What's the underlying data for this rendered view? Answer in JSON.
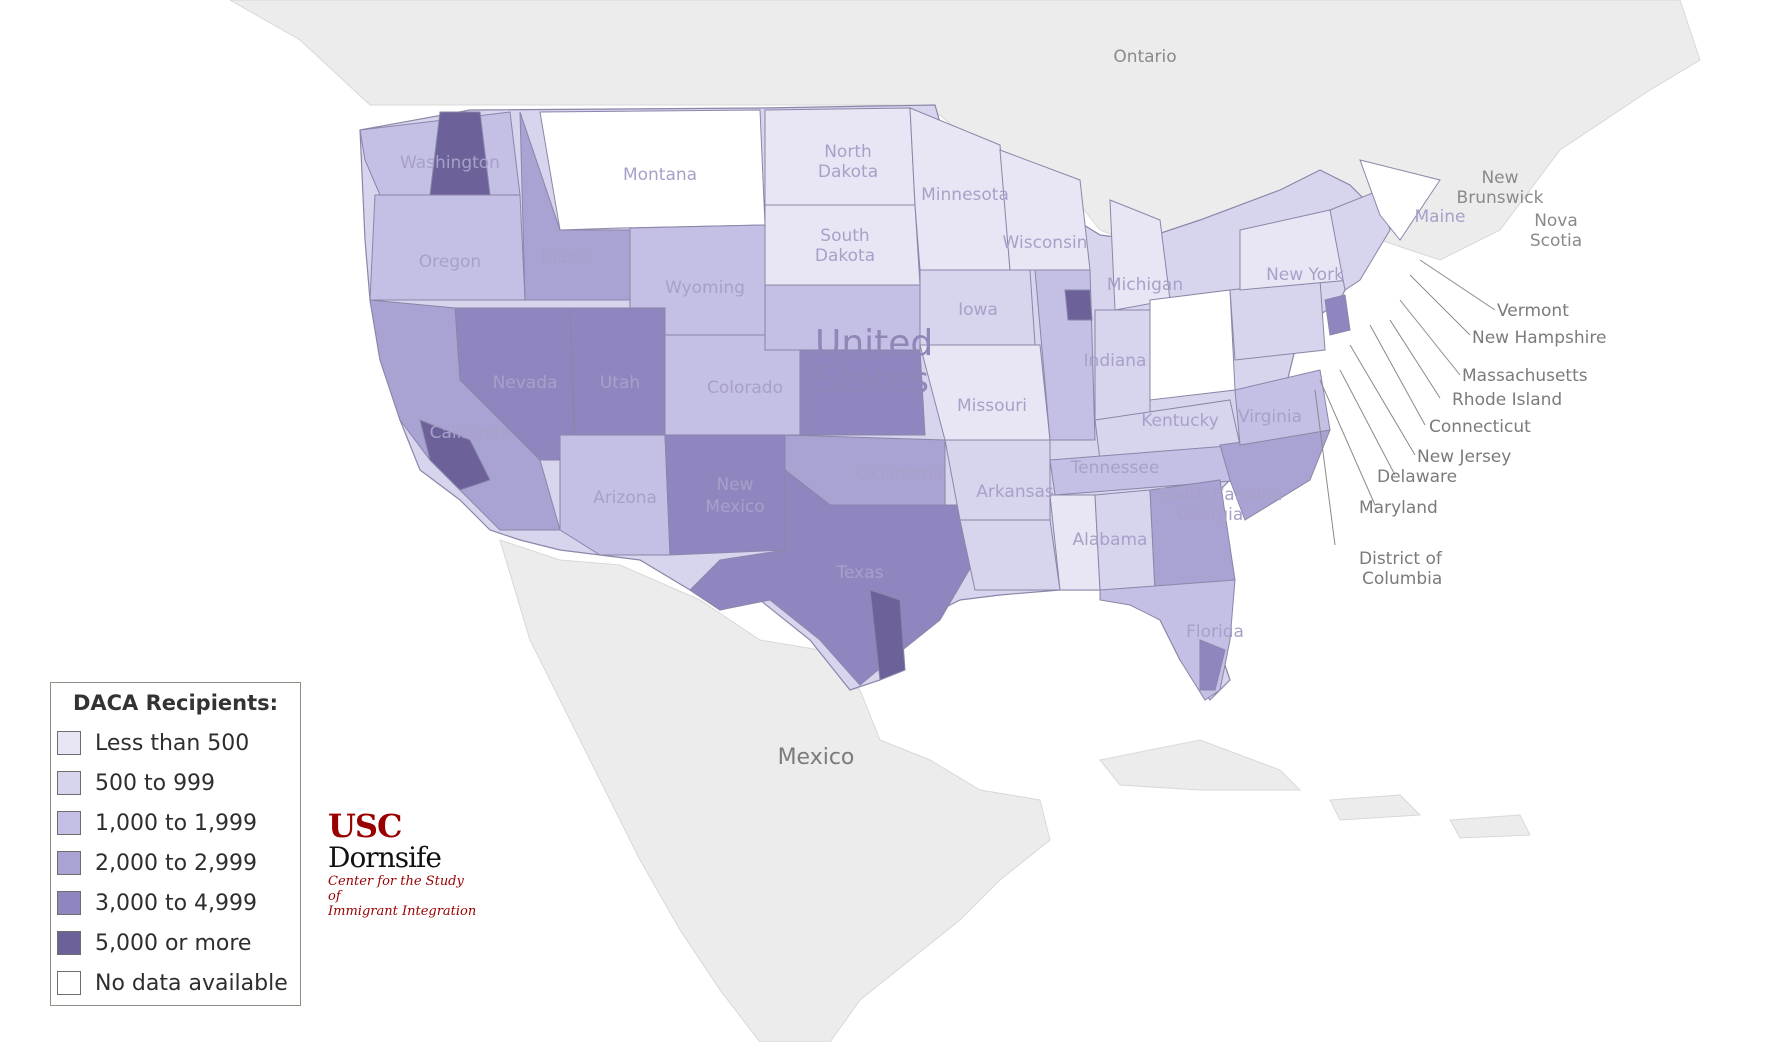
{
  "map": {
    "country_label": "United States",
    "country_label_line1": "United",
    "country_label_line2": "States",
    "neighbor_labels": {
      "ontario": "Ontario",
      "new_brunswick_1": "New",
      "new_brunswick_2": "Brunswick",
      "nova_scotia_1": "Nova",
      "nova_scotia_2": "Scotia",
      "mexico": "Mexico"
    },
    "state_labels": {
      "washington": "Washington",
      "oregon": "Oregon",
      "idaho": "Idaho",
      "montana": "Montana",
      "north_dakota_1": "North",
      "north_dakota_2": "Dakota",
      "south_dakota_1": "South",
      "south_dakota_2": "Dakota",
      "minnesota": "Minnesota",
      "wyoming": "Wyoming",
      "nevada": "Nevada",
      "utah": "Utah",
      "colorado": "Colorado",
      "california": "California",
      "arizona": "Arizona",
      "new_mexico_1": "New",
      "new_mexico_2": "Mexico",
      "texas": "Texas",
      "oklahoma": "Oklahoma",
      "iowa": "Iowa",
      "missouri": "Missouri",
      "arkansas": "Arkansas",
      "kentucky": "Kentucky",
      "indiana": "Indiana",
      "michigan": "Michigan",
      "wisconsin": "Wisconsin",
      "tennessee": "Tennessee",
      "alabama": "Alabama",
      "georgia": "Georgia",
      "south_carolina": "South Carolina",
      "virginia": "Virginia",
      "new_york": "New York",
      "maine": "Maine",
      "florida": "Florida"
    },
    "callouts": [
      "Vermont",
      "New Hampshire",
      "Massachusetts",
      "Rhode Island",
      "Connecticut",
      "New Jersey",
      "Delaware",
      "Maryland",
      "District of",
      "Columbia"
    ],
    "colors": {
      "ocean": "#ffffff",
      "land": "#ececec",
      "land_border": "#d2d2d2",
      "no_data": "#ffffff",
      "tier_lt500": "#e8e6f4",
      "tier_500_999": "#d7d4ee",
      "tier_1000_1999": "#c3bfe5",
      "tier_2000_2999": "#a9a3d3",
      "tier_3000_4999": "#8f86c0",
      "tier_5000_plus": "#6c6299"
    }
  },
  "legend": {
    "title": "DACA Recipients:",
    "items": [
      {
        "label": "Less than 500",
        "color": "#e8e6f4"
      },
      {
        "label": "500 to 999",
        "color": "#d7d4ee"
      },
      {
        "label": "1,000 to 1,999",
        "color": "#c3bfe5"
      },
      {
        "label": "2,000 to 2,999",
        "color": "#a9a3d3"
      },
      {
        "label": "3,000 to 4,999",
        "color": "#8f86c0"
      },
      {
        "label": "5,000 or more",
        "color": "#6c6299"
      },
      {
        "label": "No data available",
        "color": "#ffffff"
      }
    ]
  },
  "logo": {
    "usc": "USC",
    "dornsife": "Dornsife",
    "tagline_1": "Center for the Study of",
    "tagline_2": "Immigrant Integration"
  }
}
